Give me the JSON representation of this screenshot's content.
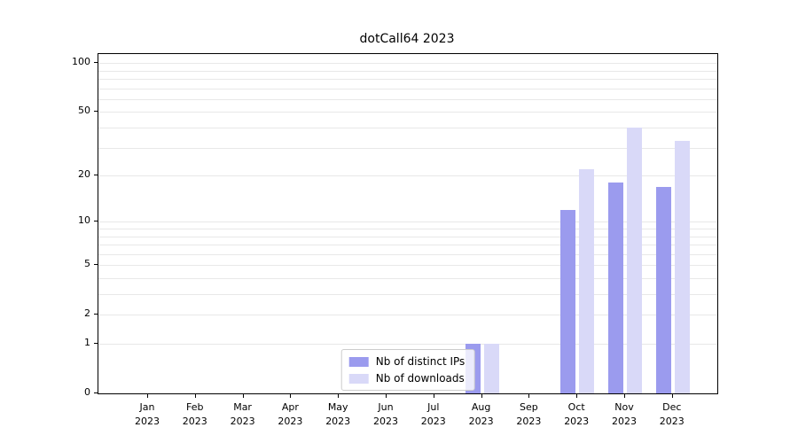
{
  "chart_data": {
    "type": "bar",
    "title": "dotCall64 2023",
    "categories": [
      {
        "month": "Jan",
        "year": "2023"
      },
      {
        "month": "Feb",
        "year": "2023"
      },
      {
        "month": "Mar",
        "year": "2023"
      },
      {
        "month": "Apr",
        "year": "2023"
      },
      {
        "month": "May",
        "year": "2023"
      },
      {
        "month": "Jun",
        "year": "2023"
      },
      {
        "month": "Jul",
        "year": "2023"
      },
      {
        "month": "Aug",
        "year": "2023"
      },
      {
        "month": "Sep",
        "year": "2023"
      },
      {
        "month": "Oct",
        "year": "2023"
      },
      {
        "month": "Nov",
        "year": "2023"
      },
      {
        "month": "Dec",
        "year": "2023"
      }
    ],
    "series": [
      {
        "name": "Nb of distinct IPs",
        "color": "#9b9bee",
        "values": [
          0,
          0,
          0,
          0,
          0,
          0,
          0,
          1,
          0,
          12,
          18,
          17
        ]
      },
      {
        "name": "Nb of downloads",
        "color": "#d9d9f8",
        "values": [
          0,
          0,
          0,
          0,
          0,
          0,
          0,
          1,
          0,
          22,
          40,
          33
        ]
      }
    ],
    "y_axis": {
      "scale": "log10(value+1)",
      "tick_values": [
        0,
        1,
        2,
        5,
        10,
        20,
        50,
        100
      ],
      "gridline_values": [
        1,
        2,
        3,
        4,
        5,
        6,
        7,
        8,
        9,
        10,
        20,
        30,
        40,
        50,
        60,
        70,
        80,
        90,
        100
      ],
      "min_value": 0,
      "max_value": 114
    },
    "legend": {
      "position": "lower center",
      "entries": [
        "Nb of distinct IPs",
        "Nb of downloads"
      ]
    },
    "grid": true
  }
}
